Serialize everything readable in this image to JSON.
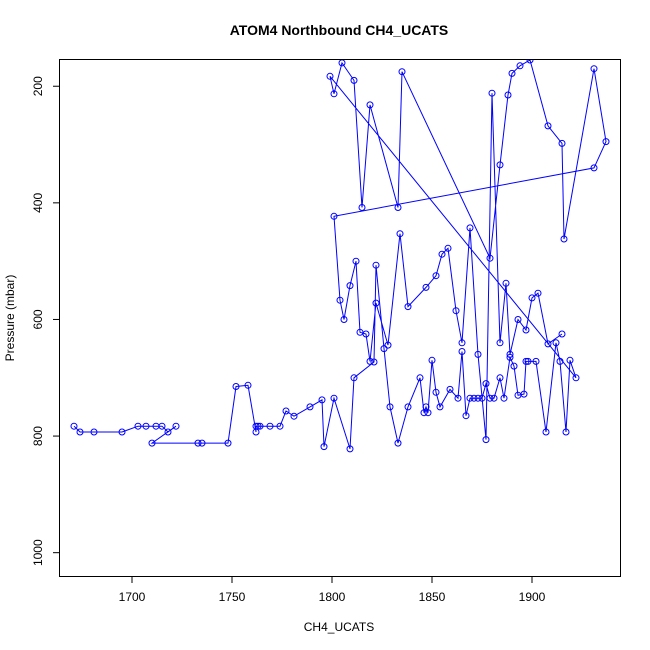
{
  "chart_data": {
    "type": "line",
    "title": "ATOM4 Northbound CH4_UCATS",
    "xlabel": "CH4_UCATS",
    "ylabel": "Pressure (mbar)",
    "xlim": [
      1664,
      1944
    ],
    "ylim": [
      1040,
      155
    ],
    "y_axis_inverted": true,
    "x_ticks": [
      1700,
      1750,
      1800,
      1850,
      1900
    ],
    "y_ticks": [
      200,
      400,
      600,
      800,
      1000
    ],
    "grid": false,
    "legend": "none",
    "series": [
      {
        "color": "#0000ff",
        "marker": "open-circle",
        "points": [
          [
            1671,
            783
          ],
          [
            1674,
            793
          ],
          [
            1681,
            793
          ],
          [
            1695,
            793
          ],
          [
            1703,
            783
          ],
          [
            1707,
            783
          ],
          [
            1712,
            783
          ],
          [
            1715,
            783
          ],
          [
            1718,
            793
          ],
          [
            1722,
            783
          ],
          [
            1710,
            812
          ],
          [
            1733,
            812
          ],
          [
            1735,
            812
          ],
          [
            1748,
            812
          ],
          [
            1752,
            715
          ],
          [
            1758,
            713
          ],
          [
            1762,
            793
          ],
          [
            1762,
            783
          ],
          [
            1763,
            783
          ],
          [
            1764,
            783
          ],
          [
            1769,
            783
          ],
          [
            1774,
            783
          ],
          [
            1777,
            757
          ],
          [
            1781,
            766
          ],
          [
            1789,
            750
          ],
          [
            1795,
            738
          ],
          [
            1796,
            818
          ],
          [
            1801,
            735
          ],
          [
            1809,
            822
          ],
          [
            1811,
            700
          ],
          [
            1821,
            673
          ],
          [
            1822,
            507
          ],
          [
            1826,
            650
          ],
          [
            1829,
            750
          ],
          [
            1833,
            812
          ],
          [
            1838,
            750
          ],
          [
            1844,
            700
          ],
          [
            1846,
            760
          ],
          [
            1847,
            750
          ],
          [
            1848,
            760
          ],
          [
            1850,
            670
          ],
          [
            1852,
            725
          ],
          [
            1854,
            750
          ],
          [
            1859,
            720
          ],
          [
            1863,
            735
          ],
          [
            1865,
            655
          ],
          [
            1867,
            765
          ],
          [
            1869,
            735
          ],
          [
            1871,
            735
          ],
          [
            1873,
            735
          ],
          [
            1875,
            735
          ],
          [
            1877,
            710
          ],
          [
            1879,
            735
          ],
          [
            1881,
            735
          ],
          [
            1884,
            700
          ],
          [
            1886,
            735
          ],
          [
            1889,
            665
          ],
          [
            1891,
            680
          ],
          [
            1893,
            730
          ],
          [
            1896,
            728
          ],
          [
            1897,
            672
          ],
          [
            1898,
            672
          ],
          [
            1902,
            672
          ],
          [
            1907,
            793
          ],
          [
            1912,
            640
          ],
          [
            1914,
            672
          ],
          [
            1917,
            793
          ],
          [
            1919,
            670
          ],
          [
            1922,
            700
          ],
          [
            1799,
            183
          ],
          [
            1801,
            213
          ],
          [
            1805,
            160
          ],
          [
            1811,
            190
          ],
          [
            1815,
            408
          ],
          [
            1819,
            232
          ],
          [
            1833,
            408
          ],
          [
            1835,
            175
          ],
          [
            1879,
            495
          ],
          [
            1884,
            335
          ],
          [
            1888,
            215
          ],
          [
            1890,
            178
          ],
          [
            1894,
            165
          ],
          [
            1899,
            155
          ],
          [
            1908,
            268
          ],
          [
            1915,
            298
          ],
          [
            1916,
            462
          ],
          [
            1931,
            170
          ],
          [
            1937,
            295
          ],
          [
            1931,
            340
          ],
          [
            1801,
            423
          ],
          [
            1804,
            567
          ],
          [
            1806,
            600
          ],
          [
            1809,
            542
          ],
          [
            1812,
            500
          ],
          [
            1814,
            622
          ],
          [
            1817,
            625
          ],
          [
            1819,
            672
          ],
          [
            1822,
            572
          ],
          [
            1828,
            644
          ],
          [
            1834,
            453
          ],
          [
            1838,
            578
          ],
          [
            1847,
            545
          ],
          [
            1852,
            525
          ],
          [
            1855,
            488
          ],
          [
            1858,
            478
          ],
          [
            1862,
            585
          ],
          [
            1865,
            640
          ],
          [
            1869,
            443
          ],
          [
            1873,
            660
          ],
          [
            1877,
            806
          ],
          [
            1880,
            212
          ],
          [
            1884,
            640
          ],
          [
            1887,
            538
          ],
          [
            1889,
            660
          ],
          [
            1893,
            600
          ],
          [
            1897,
            618
          ],
          [
            1900,
            563
          ],
          [
            1903,
            555
          ],
          [
            1908,
            642
          ],
          [
            1915,
            625
          ]
        ]
      }
    ]
  }
}
